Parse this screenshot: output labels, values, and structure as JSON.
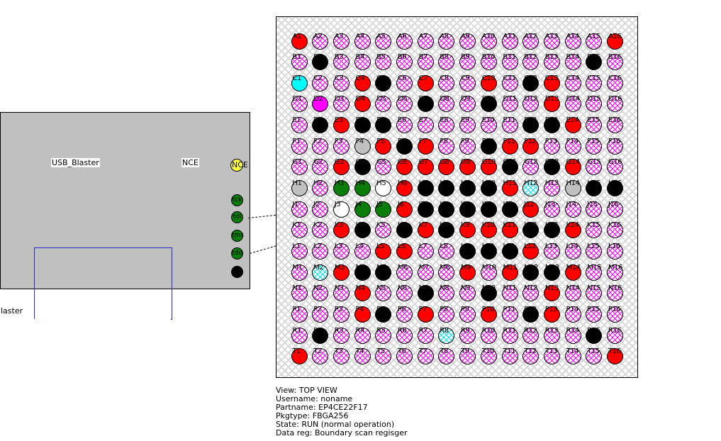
{
  "panel": {
    "device_label": "USB_Blaster",
    "nce_label": "NCE",
    "nce_pin_label": "NCE",
    "jtag_pins": [
      {
        "id": "tck",
        "label": "tck"
      },
      {
        "id": "tdi",
        "label": "tdi"
      },
      {
        "id": "tms",
        "label": "tms"
      },
      {
        "id": "tdo",
        "label": "tdo"
      }
    ],
    "cutoff_text": "laster"
  },
  "bga": {
    "package_columns": 16,
    "row_letters": [
      "A",
      "B",
      "C",
      "D",
      "E",
      "F",
      "G",
      "H",
      "J",
      "K",
      "L",
      "M",
      "N",
      "P",
      "R",
      "T"
    ],
    "color_codes": {
      "p": "hatch-magenta",
      "C": "hatch-cyan",
      "r": "red",
      "b": "black",
      "c": "cyan",
      "m": "magenta",
      "g": "green",
      "w": "white",
      "y": "gray"
    },
    "rows": [
      {
        "letter": "A",
        "cells": "rppppppppppppppr"
      },
      {
        "letter": "B",
        "cells": "pbppppppppppppbp"
      },
      {
        "letter": "C",
        "cells": "cpprbprpprpbrppp"
      },
      {
        "letter": "D",
        "cells": "pmprppbppbpprppp"
      },
      {
        "letter": "E",
        "cells": "pbrbbppppppbbrpp"
      },
      {
        "letter": "F",
        "cells": "pppyrbrppbrrpppp"
      },
      {
        "letter": "G",
        "cells": "pprbprrrrrbpbrpp"
      },
      {
        "letter": "H",
        "cells": "ypggwrbbbbrCpybb"
      },
      {
        "letter": "J",
        "cells": "ppwggrbbbbbrpppp"
      },
      {
        "letter": "K",
        "cells": "pprbpbrbrrrbbrpp"
      },
      {
        "letter": "L",
        "cells": "pppprrppbbbrpppp"
      },
      {
        "letter": "M",
        "cells": "pCrbbppprprbbrpp"
      },
      {
        "letter": "N",
        "cells": "ppprppbppbpprppp"
      },
      {
        "letter": "P",
        "cells": "ppprbprpprpbrppp"
      },
      {
        "letter": "R",
        "cells": "pbpppppCppppppbp"
      },
      {
        "letter": "T",
        "cells": "rppppppppppppppr"
      }
    ]
  },
  "info": {
    "lines": [
      "View: TOP VIEW",
      "Username: noname",
      "Partname: EP4CE22F17",
      "Pkgtype: FBGA256",
      "State: RUN (normal operation)",
      "Data reg: Boundary scan regisger"
    ]
  },
  "colors": {
    "red": "#ff0000",
    "black": "#000000",
    "cyan": "#00ffff",
    "magenta": "#ff00ff",
    "green": "#0a7d0a",
    "gray": "#c0c0c0",
    "hatch_line_magenta": "#ff00ff",
    "hatch_line_cyan": "#00e5ee",
    "panel_bg": "#c0c0c0",
    "box_border_blue": "#2a2ac8",
    "nce_pin_yellow": "#ffff42"
  }
}
